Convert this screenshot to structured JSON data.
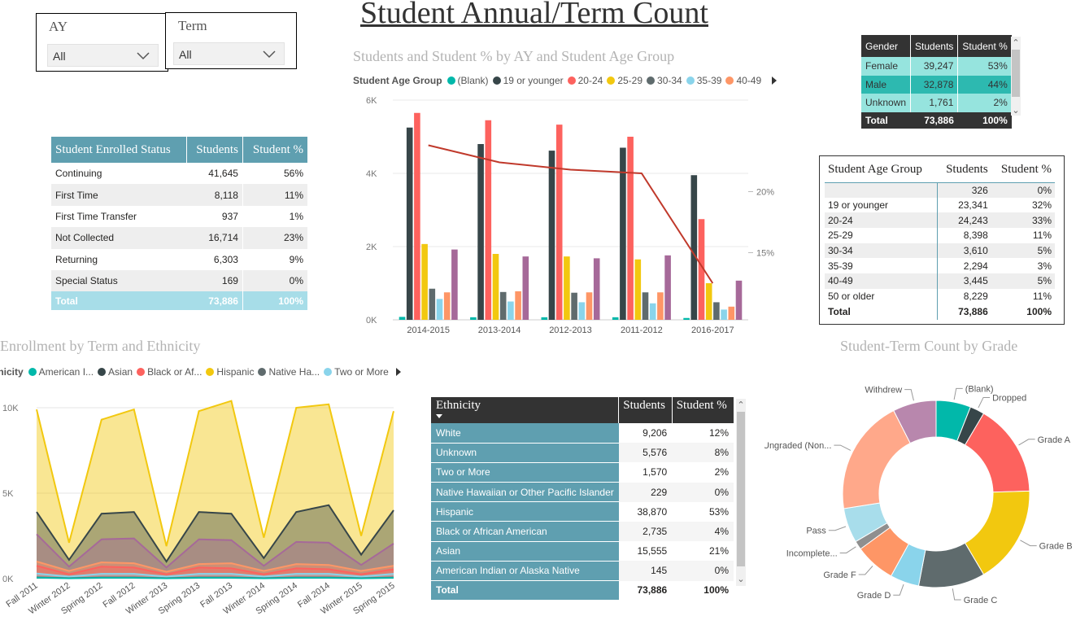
{
  "page": {
    "title": "Student Annual/Term Count"
  },
  "slicers": [
    {
      "label": "AY",
      "value": "All"
    },
    {
      "label": "Term",
      "value": "All"
    }
  ],
  "enrolled_table": {
    "headers": [
      "Student Enrolled Status",
      "Students",
      "Student %"
    ],
    "rows": [
      [
        "Continuing",
        "41,645",
        "56%"
      ],
      [
        "First Time",
        "8,118",
        "11%"
      ],
      [
        "First Time Transfer",
        "937",
        "1%"
      ],
      [
        "Not Collected",
        "16,714",
        "23%"
      ],
      [
        "Returning",
        "6,303",
        "9%"
      ],
      [
        "Special Status",
        "169",
        "0%"
      ]
    ],
    "total": [
      "Total",
      "73,886",
      "100%"
    ]
  },
  "gender_table": {
    "headers": [
      "Gender",
      "Students",
      "Student %"
    ],
    "rows": [
      [
        "Female",
        "39,247",
        "53%"
      ],
      [
        "Male",
        "32,878",
        "44%"
      ],
      [
        "Unknown",
        "1,761",
        "2%"
      ]
    ],
    "total": [
      "Total",
      "73,886",
      "100%"
    ]
  },
  "age_table": {
    "headers": [
      "Student Age Group",
      "Students",
      "Student %"
    ],
    "rows": [
      [
        "",
        "326",
        "0%"
      ],
      [
        "19 or younger",
        "23,341",
        "32%"
      ],
      [
        "20-24",
        "24,243",
        "33%"
      ],
      [
        "25-29",
        "8,398",
        "11%"
      ],
      [
        "30-34",
        "3,610",
        "5%"
      ],
      [
        "35-39",
        "2,294",
        "3%"
      ],
      [
        "40-49",
        "3,445",
        "5%"
      ],
      [
        "50 or older",
        "8,229",
        "11%"
      ]
    ],
    "total": [
      "Total",
      "73,886",
      "100%"
    ]
  },
  "ethnicity_table": {
    "headers": [
      "Ethnicity",
      "Students",
      "Student %"
    ],
    "rows": [
      [
        "White",
        "9,206",
        "12%"
      ],
      [
        "Unknown",
        "5,576",
        "8%"
      ],
      [
        "Two or More",
        "1,570",
        "2%"
      ],
      [
        "Native Hawaiian or Other Pacific Islander",
        "229",
        "0%"
      ],
      [
        "Hispanic",
        "38,870",
        "53%"
      ],
      [
        "Black or African American",
        "2,735",
        "4%"
      ],
      [
        "Asian",
        "15,555",
        "21%"
      ],
      [
        "American Indian or Alaska Native",
        "145",
        "0%"
      ]
    ],
    "total": [
      "Total",
      "73,886",
      "100%"
    ]
  },
  "colors": {
    "teal": "#01B8AA",
    "dark": "#374649",
    "red": "#FD625E",
    "yellow": "#F2C80F",
    "gray": "#5F6B6D",
    "lightblue": "#8AD4EB",
    "orange": "#FE9666",
    "purple": "#A66999",
    "header_dark": "#333333",
    "header_teal": "#5f9fb0",
    "total_cyan": "#a7dde8"
  },
  "chart_data": [
    {
      "type": "bar",
      "title": "Students and Student % by AY and Student Age Group",
      "legend_title": "Student Age Group",
      "categories": [
        "2014-2015",
        "2013-2014",
        "2012-2013",
        "2011-2012",
        "2016-2017"
      ],
      "series": [
        {
          "name": "(Blank)",
          "color": "#01B8AA",
          "values": [
            80,
            70,
            70,
            70,
            50
          ]
        },
        {
          "name": "19 or younger",
          "color": "#374649",
          "values": [
            5250,
            4800,
            4620,
            4700,
            3950
          ]
        },
        {
          "name": "20-24",
          "color": "#FD625E",
          "values": [
            5650,
            5450,
            5330,
            5000,
            2750
          ]
        },
        {
          "name": "25-29",
          "color": "#F2C80F",
          "values": [
            2070,
            1800,
            1730,
            1650,
            1000
          ]
        },
        {
          "name": "30-34",
          "color": "#5F6B6D",
          "values": [
            850,
            760,
            740,
            750,
            480
          ]
        },
        {
          "name": "35-39",
          "color": "#8AD4EB",
          "values": [
            570,
            500,
            480,
            450,
            280
          ]
        },
        {
          "name": "40-49",
          "color": "#FE9666",
          "values": [
            750,
            780,
            750,
            750,
            360
          ]
        },
        {
          "name": "50 or older",
          "color": "#A66999",
          "values": [
            1920,
            1730,
            1680,
            1760,
            1070
          ]
        }
      ],
      "line": {
        "color": "#c0392b",
        "values": [
          23.8,
          22.4,
          21.8,
          21.5,
          12.5
        ]
      },
      "y_ticks": [
        "0K",
        "2K",
        "4K",
        "6K"
      ],
      "ylim": [
        0,
        6000
      ],
      "y2_ticks": [
        "15%",
        "20%"
      ],
      "y2lim": [
        9.5,
        27.5
      ],
      "legend_position": "top"
    },
    {
      "type": "area",
      "title": "Enrollment by Term and Ethnicity",
      "legend_title": "Ethnicity",
      "legend_items": [
        {
          "name": "American I...",
          "color": "#01B8AA"
        },
        {
          "name": "Asian",
          "color": "#374649"
        },
        {
          "name": "Black or Af...",
          "color": "#FD625E"
        },
        {
          "name": "Hispanic",
          "color": "#F2C80F"
        },
        {
          "name": "Native Ha...",
          "color": "#5F6B6D"
        },
        {
          "name": "Two or More",
          "color": "#8AD4EB"
        }
      ],
      "x": [
        "Fall 2011",
        "Winter 2012",
        "Spring 2012",
        "Fall 2012",
        "Winter 2013",
        "Spring 2013",
        "Fall 2013",
        "Winter 2014",
        "Spring 2014",
        "Fall 2014",
        "Winter 2015",
        "Spring 2015"
      ],
      "series": [
        {
          "name": "Hispanic",
          "color": "#F2C80F",
          "values": [
            9900,
            2100,
            9300,
            9900,
            1900,
            9800,
            10400,
            2400,
            10000,
            10200,
            2500,
            9800
          ]
        },
        {
          "name": "Asian",
          "color": "#374649",
          "values": [
            3900,
            1100,
            3800,
            3900,
            1000,
            3900,
            3800,
            1200,
            3900,
            4300,
            1400,
            4000
          ]
        },
        {
          "name": "White",
          "color": "#A66999",
          "values": [
            2600,
            700,
            2300,
            2350,
            650,
            2300,
            2250,
            750,
            2150,
            2100,
            800,
            2050
          ]
        },
        {
          "name": "Unknown",
          "color": "#FE9666",
          "values": [
            1000,
            450,
            950,
            900,
            400,
            850,
            900,
            450,
            850,
            800,
            450,
            750
          ]
        },
        {
          "name": "Black or Af...",
          "color": "#FD625E",
          "values": [
            750,
            250,
            700,
            650,
            250,
            650,
            600,
            250,
            600,
            550,
            250,
            550
          ]
        },
        {
          "name": "Two or More",
          "color": "#8AD4EB",
          "values": [
            300,
            120,
            280,
            280,
            120,
            280,
            280,
            120,
            280,
            280,
            120,
            280
          ]
        },
        {
          "name": "Native Ha...",
          "color": "#5F6B6D",
          "values": [
            80,
            30,
            70,
            70,
            30,
            70,
            70,
            30,
            70,
            70,
            30,
            70
          ]
        },
        {
          "name": "American I...",
          "color": "#01B8AA",
          "values": [
            60,
            20,
            50,
            50,
            20,
            50,
            50,
            20,
            50,
            50,
            20,
            50
          ]
        }
      ],
      "y_ticks": [
        "0K",
        "5K",
        "10K"
      ],
      "ylim": [
        0,
        11000
      ],
      "legend_position": "top"
    },
    {
      "type": "pie",
      "title": "Student-Term Count by Grade",
      "slices": [
        {
          "name": "(Blank)",
          "value": 6,
          "color": "#01B8AA"
        },
        {
          "name": "Dropped",
          "value": 2.5,
          "color": "#374649"
        },
        {
          "name": "Grade A",
          "value": 16,
          "color": "#FD625E"
        },
        {
          "name": "Grade B",
          "value": 17,
          "color": "#F2C80F"
        },
        {
          "name": "Grade C",
          "value": 11.5,
          "color": "#5F6B6D"
        },
        {
          "name": "Grade D",
          "value": 5,
          "color": "#8AD4EB"
        },
        {
          "name": "Grade F",
          "value": 7,
          "color": "#FE9666"
        },
        {
          "name": "Incomplete...",
          "value": 1.5,
          "color": "#8f8f8f"
        },
        {
          "name": "Pass",
          "value": 6,
          "color": "#a8ddeb"
        },
        {
          "name": "Ungraded (Non...",
          "value": 20,
          "color": "#FFA88A"
        },
        {
          "name": "Withdrew",
          "value": 7.5,
          "color": "#B887AD"
        }
      ],
      "legend_position": "labels"
    }
  ]
}
